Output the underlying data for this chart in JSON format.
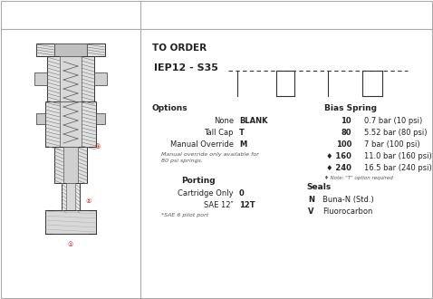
{
  "title": "TO ORDER",
  "model_code": "IEP12 - S35",
  "background_color": "#ffffff",
  "border_color": "#aaaaaa",
  "options_label": "Options",
  "options": [
    [
      "None",
      "BLANK"
    ],
    [
      "Tall Cap",
      "T"
    ],
    [
      "Manual Override",
      "M"
    ]
  ],
  "options_note": "Manual override only available for\n80 psi springs.",
  "porting_label": "Porting",
  "porting": [
    [
      "Cartridge Only",
      "0"
    ],
    [
      "SAE 12″",
      "12T"
    ]
  ],
  "porting_note": "*SAE 6 pilot port",
  "bias_spring_label": "Bias Spring",
  "bias_spring": [
    [
      "10",
      "0.7 bar (10 psi)"
    ],
    [
      "80",
      "5.52 bar (80 psi)"
    ],
    [
      "100",
      "7 bar (100 psi)"
    ],
    [
      "♦ 160",
      "11.0 bar (160 psi)"
    ],
    [
      "♦ 240",
      "16.5 bar (240 psi)"
    ]
  ],
  "bias_spring_note": "♦ Note: \"T\" option required",
  "seals_label": "Seals",
  "seals": [
    [
      "N",
      "Buna-N (Std.)"
    ],
    [
      "V",
      "Fluorocarbon"
    ]
  ],
  "line_color": "#333333",
  "text_color": "#222222",
  "small_text_color": "#555555"
}
